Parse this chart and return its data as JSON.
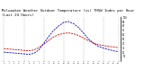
{
  "title": "Milwaukee Weather Outdoor Temperature (vs) THSW Index per Hour (Last 24 Hours)",
  "title_fontsize": 2.8,
  "background_color": "#ffffff",
  "grid_color": "#888888",
  "x_hours": [
    0,
    1,
    2,
    3,
    4,
    5,
    6,
    7,
    8,
    9,
    10,
    11,
    12,
    13,
    14,
    15,
    16,
    17,
    18,
    19,
    20,
    21,
    22,
    23
  ],
  "temp_values": [
    28,
    27,
    26,
    25,
    24,
    23,
    25,
    30,
    38,
    47,
    55,
    60,
    63,
    64,
    62,
    58,
    52,
    46,
    41,
    37,
    35,
    33,
    32,
    30
  ],
  "thsw_values": [
    20,
    19,
    18,
    17,
    16,
    15,
    17,
    25,
    40,
    56,
    70,
    80,
    88,
    90,
    85,
    76,
    63,
    50,
    40,
    33,
    29,
    26,
    23,
    21
  ],
  "temp_color": "#cc0000",
  "thsw_color": "#0000cc",
  "ylim": [
    0,
    100
  ],
  "yticks": [
    10,
    20,
    30,
    40,
    50,
    60,
    70,
    80,
    90,
    100
  ],
  "ytick_labels": [
    "10",
    "20",
    "30",
    "40",
    "50",
    "60",
    "70",
    "80",
    "90",
    "100"
  ],
  "vgrid_positions": [
    0,
    4,
    8,
    12,
    16,
    20,
    23
  ]
}
